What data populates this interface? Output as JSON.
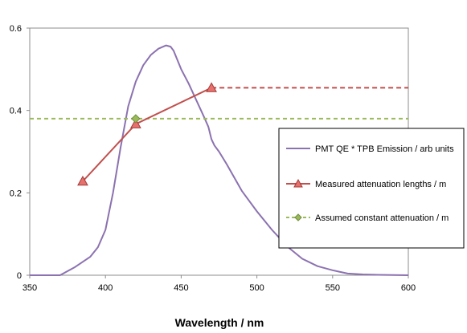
{
  "chart_data": {
    "type": "line",
    "title": "",
    "xlabel": "Wavelength / nm",
    "ylabel": "",
    "xlim": [
      350,
      600
    ],
    "ylim": [
      0,
      0.6
    ],
    "x_ticks": [
      "350",
      "400",
      "450",
      "500",
      "550",
      "600"
    ],
    "y_ticks": [
      "0",
      "0.2",
      "0.4",
      "0.6"
    ],
    "grid": false,
    "legend_position": "right",
    "series": [
      {
        "name": "PMT QE * TPB Emission / arb units",
        "color": "#8B72B0",
        "style": "solid",
        "marker": "none",
        "x": [
          350,
          357,
          370,
          380,
          390,
          395,
          400,
          405,
          410,
          415,
          420,
          425,
          430,
          435,
          440,
          443,
          445,
          450,
          455,
          460,
          465,
          468,
          470,
          472,
          475,
          480,
          490,
          500,
          510,
          520,
          530,
          540,
          550,
          555,
          560,
          570,
          580,
          600
        ],
        "y": [
          0,
          0,
          0,
          0.02,
          0.045,
          0.068,
          0.11,
          0.2,
          0.31,
          0.41,
          0.47,
          0.51,
          0.535,
          0.55,
          0.558,
          0.555,
          0.545,
          0.5,
          0.465,
          0.425,
          0.385,
          0.36,
          0.33,
          0.315,
          0.3,
          0.27,
          0.205,
          0.155,
          0.11,
          0.07,
          0.04,
          0.022,
          0.012,
          0.008,
          0.004,
          0.002,
          0.001,
          0
        ]
      },
      {
        "name": "Measured attenuation lengths / m",
        "color": "#C0504D",
        "style": "solid",
        "marker": "triangle",
        "x": [
          385,
          420,
          470
        ],
        "y": [
          0.228,
          0.367,
          0.455
        ],
        "extension": {
          "x": [
            470,
            600
          ],
          "y": [
            0.455,
            0.455
          ],
          "style": "dashed"
        }
      },
      {
        "name": "Assumed constant attenuation / m",
        "color": "#9BBB59",
        "style": "dashed",
        "marker": "diamond",
        "x": [
          350,
          600
        ],
        "y": [
          0.38,
          0.38
        ],
        "points": {
          "x": [
            420
          ],
          "y": [
            0.38
          ]
        }
      }
    ]
  }
}
